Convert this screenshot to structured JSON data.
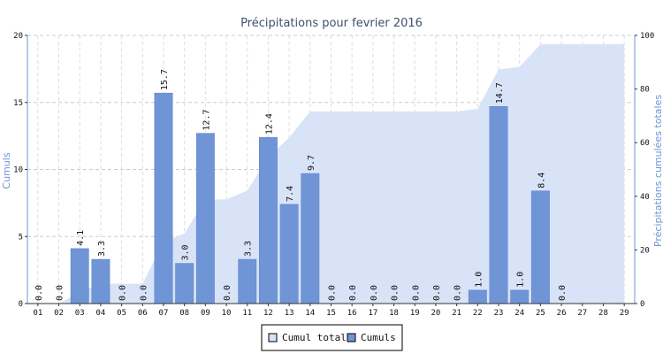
{
  "chart_data": {
    "type": "bar",
    "title": "Précipitations pour fevrier 2016",
    "ylabel": "Cumuls",
    "y2label": "Précipitations cumulées totales",
    "ylim": [
      0,
      20
    ],
    "y2lim": [
      0,
      100
    ],
    "yticks": [
      0,
      5,
      10,
      15,
      20
    ],
    "y2ticks": [
      0,
      20,
      40,
      60,
      80,
      100
    ],
    "grid": true,
    "legend_position": "bottom-center",
    "categories": [
      "01",
      "02",
      "03",
      "04",
      "05",
      "06",
      "07",
      "08",
      "09",
      "10",
      "11",
      "12",
      "13",
      "14",
      "15",
      "16",
      "17",
      "18",
      "19",
      "20",
      "21",
      "22",
      "23",
      "24",
      "25",
      "26",
      "27",
      "28",
      "29"
    ],
    "series": [
      {
        "name": "Cumuls",
        "type": "bar",
        "axis": "left",
        "color": "#6f95d6",
        "values": [
          0.0,
          0.0,
          4.1,
          3.3,
          0.0,
          0.0,
          15.7,
          3.0,
          12.7,
          0.0,
          3.3,
          12.4,
          7.4,
          9.7,
          0.0,
          0.0,
          0.0,
          0.0,
          0.0,
          0.0,
          0.0,
          1.0,
          14.7,
          1.0,
          8.4,
          0.0,
          null,
          null,
          null
        ],
        "labels": [
          "0.0",
          "0.0",
          "4.1",
          "3.3",
          "0.0",
          "0.0",
          "15.7",
          "3.0",
          "12.7",
          "0.0",
          "3.3",
          "12.4",
          "7.4",
          "9.7",
          "0.0",
          "0.0",
          "0.0",
          "0.0",
          "0.0",
          "0.0",
          "0.0",
          "1.0",
          "14.7",
          "1.0",
          "8.4",
          "0.0",
          "",
          "",
          ""
        ]
      },
      {
        "name": "Cumul total",
        "type": "area",
        "axis": "right",
        "color": "#d6e2f8",
        "values": [
          0.0,
          0.0,
          4.1,
          7.4,
          7.4,
          7.4,
          23.1,
          26.1,
          38.8,
          38.8,
          42.1,
          54.5,
          61.9,
          71.6,
          71.6,
          71.6,
          71.6,
          71.6,
          71.6,
          71.6,
          71.6,
          72.6,
          87.3,
          88.3,
          96.7,
          96.7,
          96.7,
          96.7,
          96.7
        ]
      }
    ]
  }
}
